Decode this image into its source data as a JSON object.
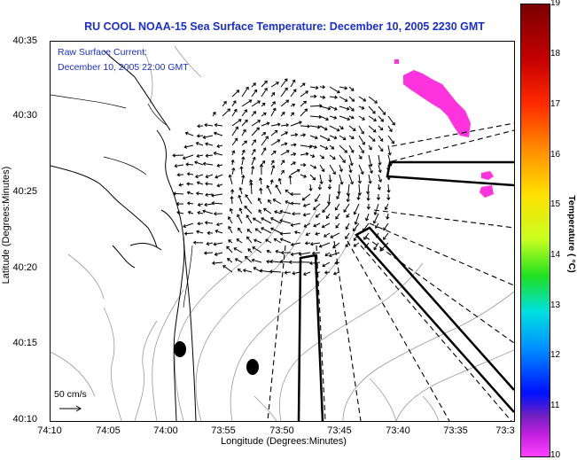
{
  "title": "RU COOL  NOAA-15  Sea Surface Temperature:  December 10, 2005 2230 GMT",
  "map": {
    "raw_current_label": "Raw Surface Current:",
    "raw_current_time": "December 10, 2005 22:00 GMT",
    "scale_label": "50 cm/s"
  },
  "axes": {
    "xlabel": "Longitude (Degrees:Minutes)",
    "ylabel": "Latitude (Degrees:Minutes)",
    "xticks": [
      "74:10",
      "74:05",
      "74:00",
      "73:55",
      "73:50",
      "73:45",
      "73:40",
      "73:35",
      "73:3"
    ],
    "yticks": [
      "40:35",
      "40:30",
      "40:25",
      "40:20",
      "40:15",
      "40:10"
    ]
  },
  "colorbar": {
    "title": "Temperature ( °C)",
    "ticks": [
      "19",
      "18",
      "17",
      "16",
      "15",
      "14",
      "13",
      "12",
      "11",
      "10"
    ]
  }
}
